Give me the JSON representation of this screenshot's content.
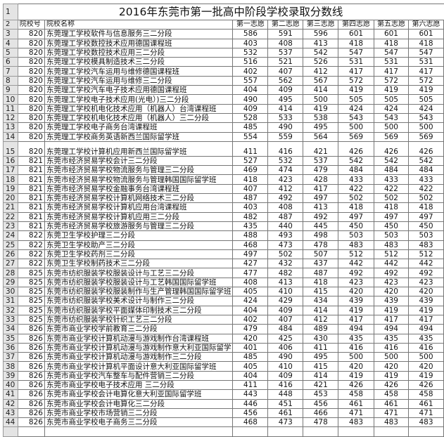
{
  "title": "2016年东莞市第一批高中阶段学校录取分数线",
  "headers": {
    "row_num": "2",
    "code": "院校号",
    "name": "院校名称",
    "choices": [
      "第一志愿",
      "第二志愿",
      "第三志愿",
      "第四志愿",
      "第五志愿",
      "第六志愿"
    ]
  },
  "title_row_num": "1",
  "rows": [
    [
      "3",
      "820",
      "东莞理工学校软件与信息服务三二分段",
      "586",
      "591",
      "596",
      "601",
      "601",
      "601"
    ],
    [
      "4",
      "820",
      "东莞理工学校数控技术应用德国课程班",
      "403",
      "408",
      "413",
      "418",
      "418",
      "418"
    ],
    [
      "5",
      "820",
      "东莞理工学校数控技术应用三二分段",
      "532",
      "537",
      "542",
      "547",
      "547",
      "547"
    ],
    [
      "6",
      "820",
      "东莞理工学校模具制造技术三二分段",
      "516",
      "521",
      "526",
      "531",
      "531",
      "531"
    ],
    [
      "7",
      "820",
      "东莞理工学校汽车运用与维修德国课程班",
      "402",
      "407",
      "412",
      "417",
      "417",
      "417"
    ],
    [
      "8",
      "820",
      "东莞理工学校汽车运用与维修三二分段",
      "557",
      "562",
      "567",
      "572",
      "572",
      "572"
    ],
    [
      "9",
      "820",
      "东莞理工学校汽车电子技术应用德国课程班",
      "404",
      "409",
      "414",
      "419",
      "419",
      "419"
    ],
    [
      "10",
      "820",
      "东莞理工学校电子技术应用(光电）)三二分段",
      "490",
      "495",
      "500",
      "505",
      "505",
      "505"
    ],
    [
      "11",
      "820",
      "东莞理工学校机电化技术应用（机器人）台湾课程班",
      "409",
      "414",
      "419",
      "424",
      "424",
      "424"
    ],
    [
      "12",
      "820",
      "东莞理工学校机电化技术应用（机器人）三二分段",
      "528",
      "533",
      "538",
      "543",
      "543",
      "543"
    ],
    [
      "13",
      "820",
      "东莞理工学校电子商务台湾课程班",
      "485",
      "490",
      "495",
      "500",
      "500",
      "500"
    ],
    [
      "14",
      "820",
      "东莞理工学校商务英语新西兰国际留学班",
      "554",
      "559",
      "564",
      "569",
      "569",
      "569"
    ],
    [
      "15",
      "820",
      "东莞理工学校计算机应用新西兰国际留学班",
      "411",
      "416",
      "421",
      "426",
      "426",
      "426"
    ],
    [
      "16",
      "821",
      "东莞市经济贸易学校会计三二分段",
      "527",
      "532",
      "537",
      "542",
      "542",
      "542"
    ],
    [
      "17",
      "821",
      "东莞市经济贸易学校物流服务与管理三二分段",
      "469",
      "474",
      "479",
      "484",
      "484",
      "484"
    ],
    [
      "18",
      "821",
      "东莞市经济贸易学校物流服务与管理韩国国际留学班",
      "418",
      "423",
      "428",
      "433",
      "433",
      "433"
    ],
    [
      "19",
      "821",
      "东莞市经济贸易学校金融事务台湾课程班",
      "407",
      "412",
      "417",
      "422",
      "422",
      "422"
    ],
    [
      "20",
      "821",
      "东莞市经济贸易学校计算机网络技术三二分段",
      "487",
      "492",
      "497",
      "502",
      "502",
      "502"
    ],
    [
      "21",
      "821",
      "东莞市经济贸易学校计算机应用台湾课程班",
      "403",
      "408",
      "413",
      "418",
      "418",
      "418"
    ],
    [
      "22",
      "821",
      "东莞市经济贸易学校计算机应用三二分段",
      "482",
      "487",
      "492",
      "497",
      "497",
      "497"
    ],
    [
      "23",
      "821",
      "东莞市经济贸易学校旅游服务与管理三二分段",
      "435",
      "440",
      "445",
      "450",
      "450",
      "450"
    ],
    [
      "24",
      "822",
      "东莞卫生学校护理三二分段",
      "488",
      "493",
      "498",
      "503",
      "503",
      "503"
    ],
    [
      "25",
      "822",
      "东莞卫生学校助产三二分段",
      "468",
      "473",
      "478",
      "483",
      "483",
      "483"
    ],
    [
      "26",
      "822",
      "东莞卫生学校药剂三二分段",
      "497",
      "502",
      "507",
      "512",
      "512",
      "512"
    ],
    [
      "27",
      "822",
      "东莞卫生学校制药技术三二分段",
      "427",
      "432",
      "437",
      "442",
      "442",
      "442"
    ],
    [
      "28",
      "825",
      "东莞市纺织服装学校服装设计与工艺三二分段",
      "477",
      "482",
      "487",
      "492",
      "492",
      "492"
    ],
    [
      "29",
      "825",
      "东莞市纺织服装学校服装设计与工艺韩国国际留学班",
      "408",
      "413",
      "418",
      "423",
      "423",
      "423"
    ],
    [
      "30",
      "825",
      "东莞市纺织服装学校服装制作与生产管理韩国国际留学班",
      "405",
      "410",
      "415",
      "420",
      "420",
      "420"
    ],
    [
      "31",
      "825",
      "东莞市纺织服装学校美术设计与制作三二分段",
      "424",
      "429",
      "434",
      "439",
      "439",
      "439"
    ],
    [
      "32",
      "825",
      "东莞市纺织服装学校平面媒体印制技术三二分段",
      "404",
      "409",
      "414",
      "419",
      "419",
      "419"
    ],
    [
      "33",
      "825",
      "东莞市纺织服装学校针织工艺三二分段",
      "402",
      "407",
      "412",
      "417",
      "417",
      "417"
    ],
    [
      "34",
      "826",
      "东莞市商业学校学前教育三二分段",
      "479",
      "484",
      "489",
      "494",
      "494",
      "494"
    ],
    [
      "35",
      "826",
      "东莞市商业学校计算机动漫与游戏制作台湾课程班",
      "420",
      "425",
      "430",
      "435",
      "435",
      "435"
    ],
    [
      "36",
      "826",
      "东莞市商业学校计算机动漫与游戏制作意大利亚国际留学",
      "401",
      "406",
      "411",
      "416",
      "416",
      "416"
    ],
    [
      "37",
      "826",
      "东莞市商业学校计算机动漫与游戏制作三二分段",
      "485",
      "490",
      "495",
      "500",
      "500",
      "500"
    ],
    [
      "38",
      "826",
      "东莞市商业学校计算机平面设计意大利亚国际留学班",
      "405",
      "410",
      "415",
      "420",
      "420",
      "420"
    ],
    [
      "39",
      "826",
      "东莞市商业学校汽车整车与配件营销三二分段",
      "404",
      "409",
      "414",
      "419",
      "419",
      "419"
    ],
    [
      "40",
      "826",
      "东莞市商业学校电子技术应用 三二分段",
      "411",
      "416",
      "421",
      "426",
      "426",
      "426"
    ],
    [
      "41",
      "826",
      "东莞市商业学校会计电算化意大利亚国际留学班",
      "443",
      "448",
      "453",
      "458",
      "458",
      "458"
    ],
    [
      "42",
      "826",
      "东莞市商业学校会计电算化三二分段",
      "446",
      "451",
      "456",
      "461",
      "461",
      "461"
    ],
    [
      "43",
      "826",
      "东莞市商业学校市场营销三二分段",
      "456",
      "461",
      "466",
      "471",
      "471",
      "471"
    ],
    [
      "44",
      "826",
      "东莞市商业学校电子商务三二分段",
      "468",
      "473",
      "478",
      "483",
      "483",
      "483"
    ]
  ]
}
